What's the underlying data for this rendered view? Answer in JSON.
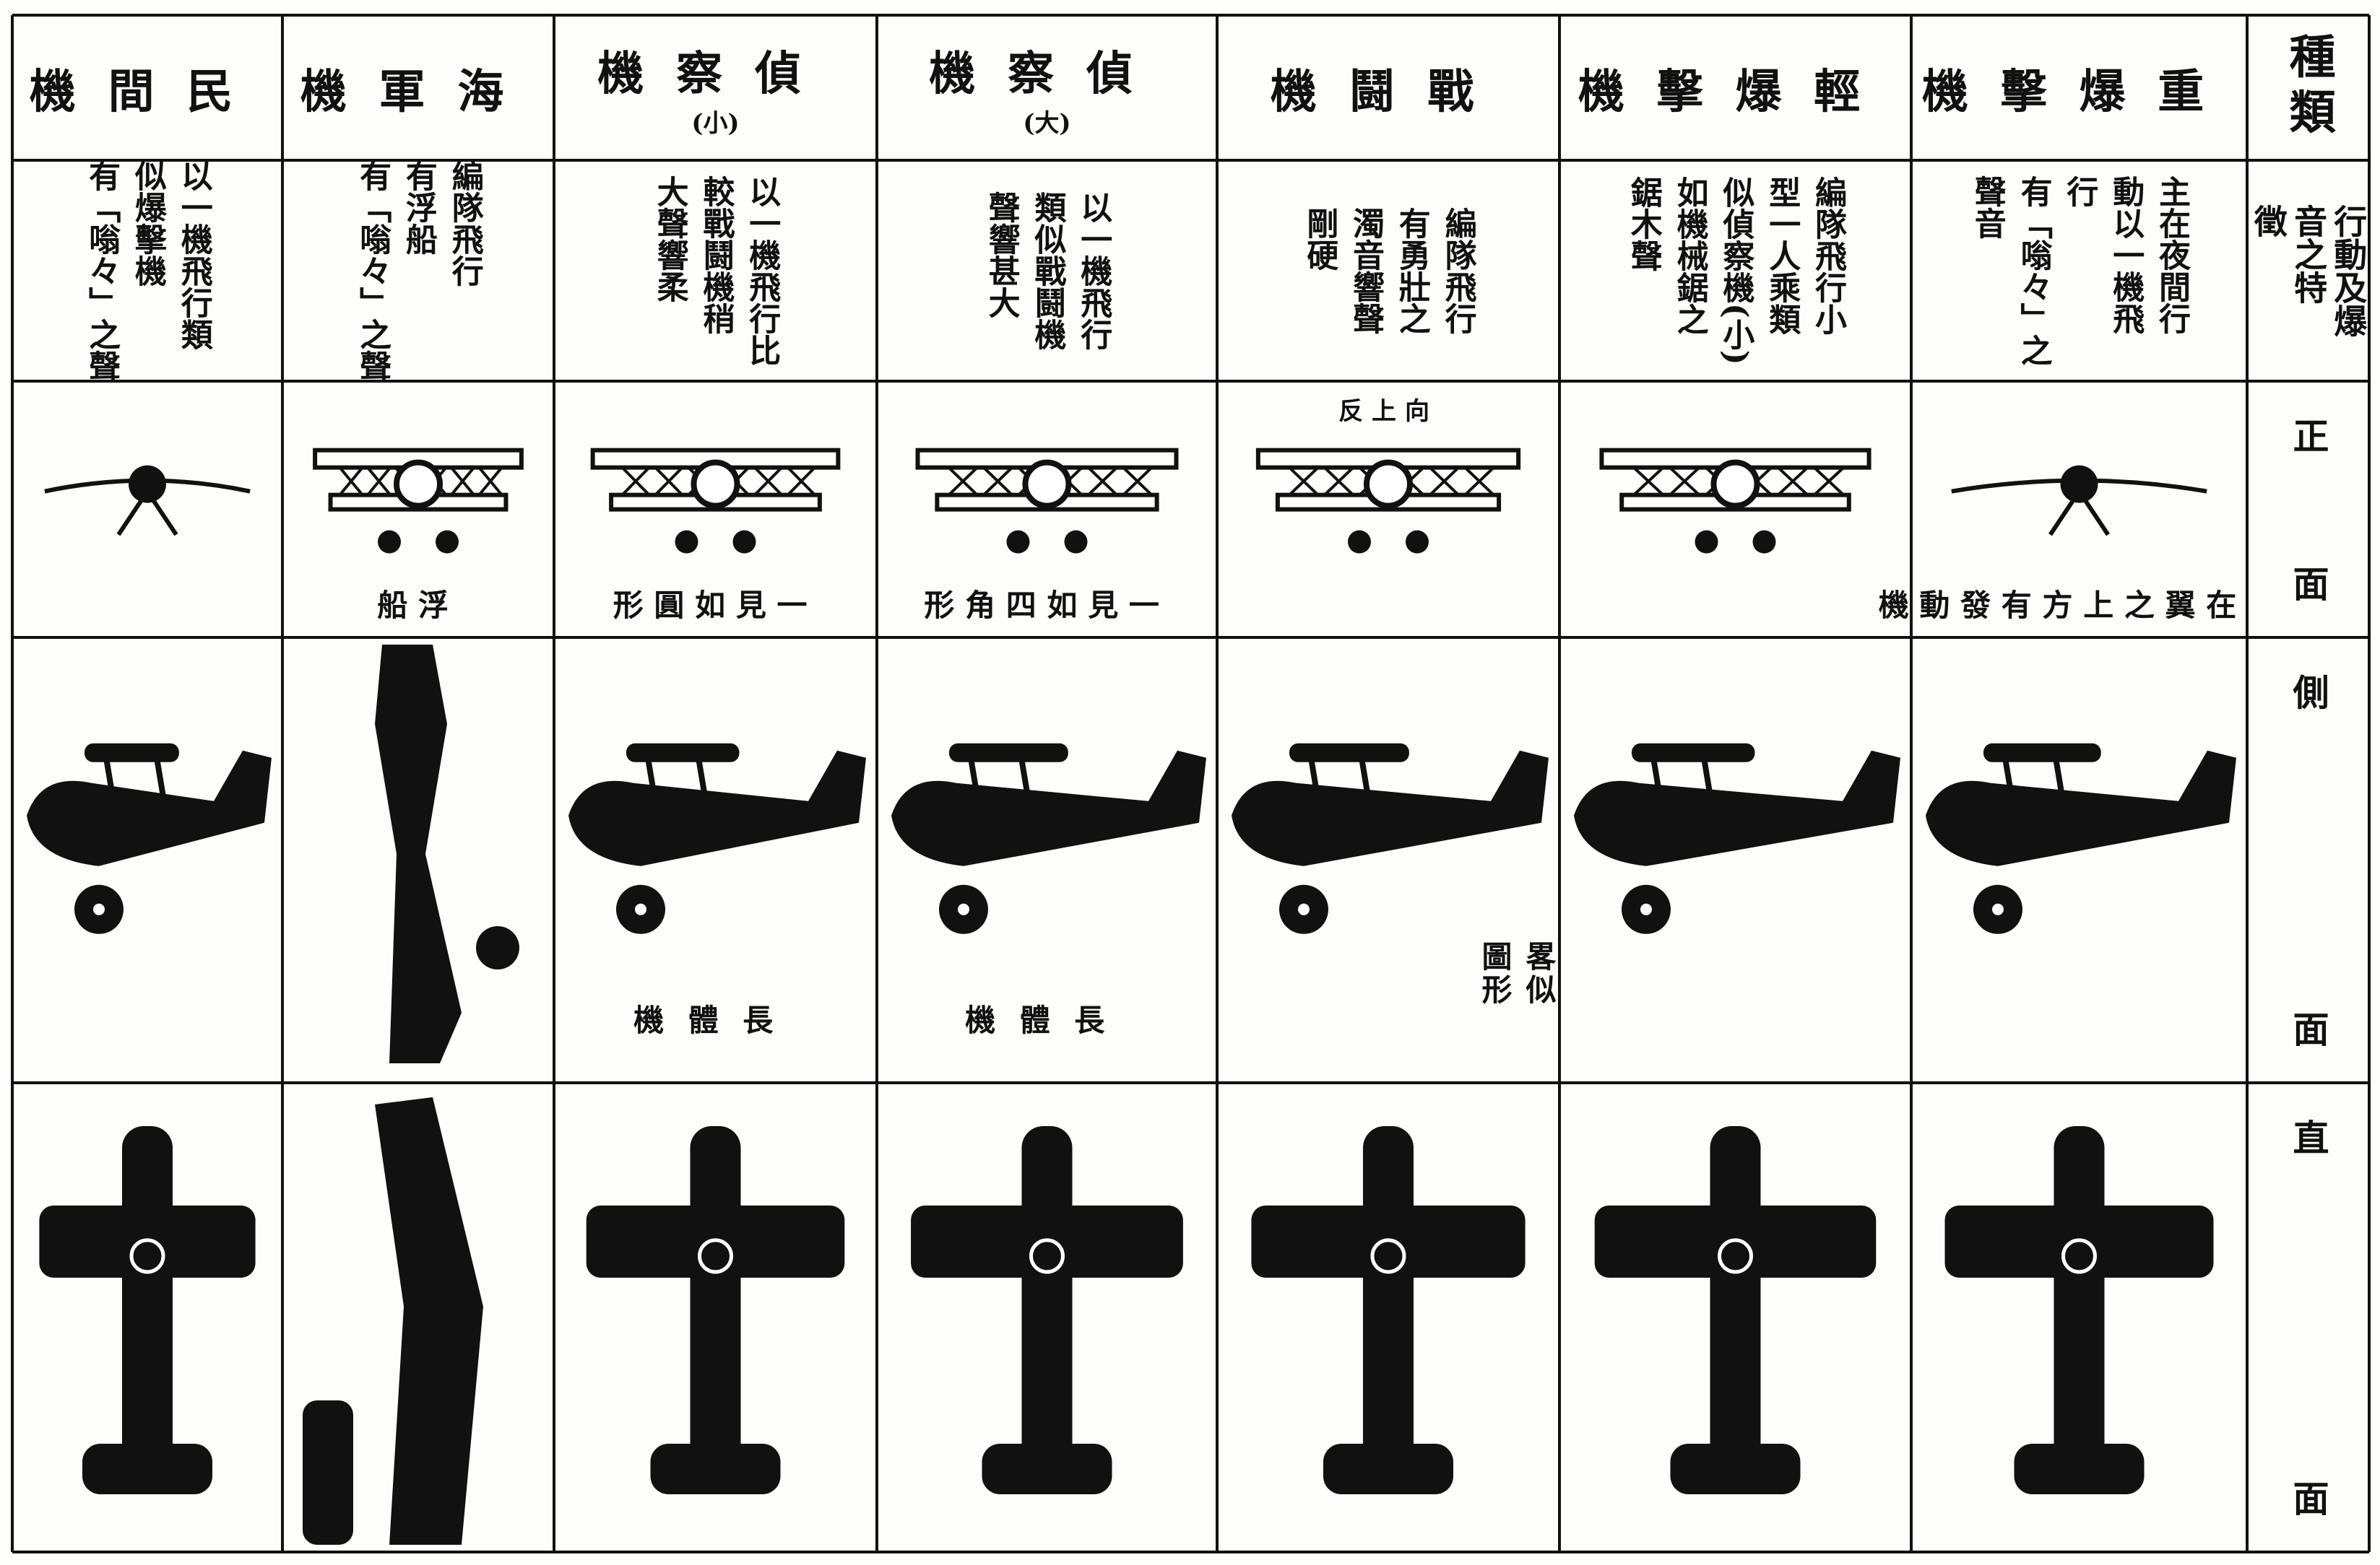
{
  "label_column": {
    "title": "種類",
    "features": [
      "行動及爆",
      "音之特",
      "徵"
    ],
    "front": "正面",
    "side": "側面",
    "top": "直面"
  },
  "columns": [
    {
      "name": "民間機",
      "features": [
        "以一機飛行類",
        "似爆擊機",
        "有「嗡々」之聲"
      ]
    },
    {
      "name": "海軍機",
      "features": [
        "編隊飛行",
        "有浮船",
        "有「嗡々」之聲"
      ],
      "front_caption": "浮船"
    },
    {
      "name": "偵察機",
      "sub": "(小)",
      "features": [
        "以一機飛行比",
        "較戰鬪機稍",
        "大聲響柔"
      ],
      "front_caption": "一見如圓形",
      "side_caption": [
        "機體長"
      ]
    },
    {
      "name": "偵察機",
      "sub": "(大)",
      "features": [
        "以一機飛行",
        "類似戰鬪機",
        "聲響甚大"
      ],
      "front_caption": "一見如四角形",
      "side_caption": [
        "機體長"
      ]
    },
    {
      "name": "戰鬪機",
      "features": [
        "編隊飛行",
        "有勇壯之",
        "濁音響聲",
        "剛硬"
      ],
      "front_top_caption": "向上反",
      "side_caption": [
        "畧似",
        "圖形"
      ]
    },
    {
      "name": "輕爆擊機",
      "features": [
        "編隊飛行小",
        "型一人乘類",
        "似偵察機(小)",
        "如機械鋸之",
        "鋸木聲"
      ]
    },
    {
      "name": "重爆擊機",
      "features": [
        "主在夜間行",
        "動以一機飛",
        "行",
        "有「嗡々」之",
        "聲音"
      ],
      "front_caption": "在翼之上方有發動機"
    }
  ]
}
